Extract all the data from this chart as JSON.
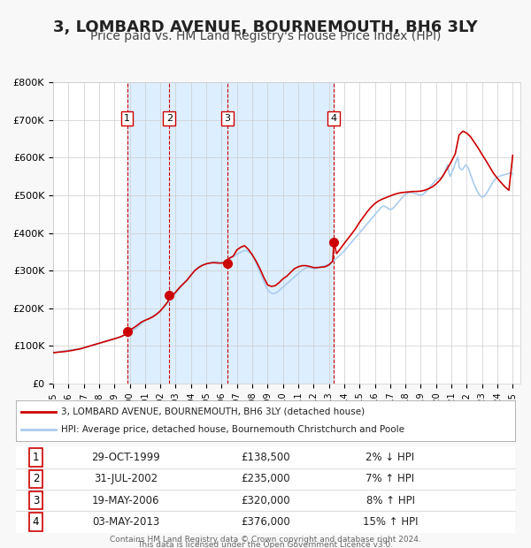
{
  "title": "3, LOMBARD AVENUE, BOURNEMOUTH, BH6 3LY",
  "subtitle": "Price paid vs. HM Land Registry's House Price Index (HPI)",
  "title_fontsize": 13,
  "subtitle_fontsize": 10,
  "ylim": [
    0,
    800000
  ],
  "yticks": [
    0,
    100000,
    200000,
    300000,
    400000,
    500000,
    600000,
    700000,
    800000
  ],
  "ytick_labels": [
    "£0",
    "£100K",
    "£200K",
    "£300K",
    "£400K",
    "£500K",
    "£600K",
    "£700K",
    "£800K"
  ],
  "xlim_start": 1995.0,
  "xlim_end": 2025.5,
  "xtick_years": [
    1995,
    1996,
    1997,
    1998,
    1999,
    2000,
    2001,
    2002,
    2003,
    2004,
    2005,
    2006,
    2007,
    2008,
    2009,
    2010,
    2011,
    2012,
    2013,
    2014,
    2015,
    2016,
    2017,
    2018,
    2019,
    2020,
    2021,
    2022,
    2023,
    2024,
    2025
  ],
  "background_color": "#f8f8f8",
  "plot_bg_color": "#ffffff",
  "grid_color": "#cccccc",
  "shaded_region_color": "#ddeeff",
  "red_line_color": "#cc0000",
  "blue_line_color": "#aaccee",
  "sale_marker_color": "#cc0000",
  "vline_color_red": "#cc0000",
  "transactions": [
    {
      "num": 1,
      "date_dec": 1999.83,
      "price": 138500,
      "label": "29-OCT-1999",
      "price_str": "£138,500",
      "change": "2% ↓ HPI"
    },
    {
      "num": 2,
      "date_dec": 2002.58,
      "price": 235000,
      "label": "31-JUL-2002",
      "price_str": "£235,000",
      "change": "7% ↑ HPI"
    },
    {
      "num": 3,
      "date_dec": 2006.38,
      "price": 320000,
      "label": "19-MAY-2006",
      "price_str": "£320,000",
      "change": "8% ↑ HPI"
    },
    {
      "num": 4,
      "date_dec": 2013.33,
      "price": 376000,
      "label": "03-MAY-2013",
      "price_str": "£376,000",
      "change": "15% ↑ HPI"
    }
  ],
  "legend_line1": "3, LOMBARD AVENUE, BOURNEMOUTH, BH6 3LY (detached house)",
  "legend_line2": "HPI: Average price, detached house, Bournemouth Christchurch and Poole",
  "footer1": "Contains HM Land Registry data © Crown copyright and database right 2024.",
  "footer2": "This data is licensed under the Open Government Licence v3.0.",
  "hpi_data": {
    "years": [
      1995.0,
      1995.083,
      1995.167,
      1995.25,
      1995.333,
      1995.417,
      1995.5,
      1995.583,
      1995.667,
      1995.75,
      1995.833,
      1995.917,
      1996.0,
      1996.083,
      1996.167,
      1996.25,
      1996.333,
      1996.417,
      1996.5,
      1996.583,
      1996.667,
      1996.75,
      1996.833,
      1996.917,
      1997.0,
      1997.083,
      1997.167,
      1997.25,
      1997.333,
      1997.417,
      1997.5,
      1997.583,
      1997.667,
      1997.75,
      1997.833,
      1997.917,
      1998.0,
      1998.083,
      1998.167,
      1998.25,
      1998.333,
      1998.417,
      1998.5,
      1998.583,
      1998.667,
      1998.75,
      1998.833,
      1998.917,
      1999.0,
      1999.083,
      1999.167,
      1999.25,
      1999.333,
      1999.417,
      1999.5,
      1999.583,
      1999.667,
      1999.75,
      1999.833,
      1999.917,
      2000.0,
      2000.083,
      2000.167,
      2000.25,
      2000.333,
      2000.417,
      2000.5,
      2000.583,
      2000.667,
      2000.75,
      2000.833,
      2000.917,
      2001.0,
      2001.083,
      2001.167,
      2001.25,
      2001.333,
      2001.417,
      2001.5,
      2001.583,
      2001.667,
      2001.75,
      2001.833,
      2001.917,
      2002.0,
      2002.083,
      2002.167,
      2002.25,
      2002.333,
      2002.417,
      2002.5,
      2002.583,
      2002.667,
      2002.75,
      2002.833,
      2002.917,
      2003.0,
      2003.083,
      2003.167,
      2003.25,
      2003.333,
      2003.417,
      2003.5,
      2003.583,
      2003.667,
      2003.75,
      2003.833,
      2003.917,
      2004.0,
      2004.083,
      2004.167,
      2004.25,
      2004.333,
      2004.417,
      2004.5,
      2004.583,
      2004.667,
      2004.75,
      2004.833,
      2004.917,
      2005.0,
      2005.083,
      2005.167,
      2005.25,
      2005.333,
      2005.417,
      2005.5,
      2005.583,
      2005.667,
      2005.75,
      2005.833,
      2005.917,
      2006.0,
      2006.083,
      2006.167,
      2006.25,
      2006.333,
      2006.417,
      2006.5,
      2006.583,
      2006.667,
      2006.75,
      2006.833,
      2006.917,
      2007.0,
      2007.083,
      2007.167,
      2007.25,
      2007.333,
      2007.417,
      2007.5,
      2007.583,
      2007.667,
      2007.75,
      2007.833,
      2007.917,
      2008.0,
      2008.083,
      2008.167,
      2008.25,
      2008.333,
      2008.417,
      2008.5,
      2008.583,
      2008.667,
      2008.75,
      2008.833,
      2008.917,
      2009.0,
      2009.083,
      2009.167,
      2009.25,
      2009.333,
      2009.417,
      2009.5,
      2009.583,
      2009.667,
      2009.75,
      2009.833,
      2009.917,
      2010.0,
      2010.083,
      2010.167,
      2010.25,
      2010.333,
      2010.417,
      2010.5,
      2010.583,
      2010.667,
      2010.75,
      2010.833,
      2010.917,
      2011.0,
      2011.083,
      2011.167,
      2011.25,
      2011.333,
      2011.417,
      2011.5,
      2011.583,
      2011.667,
      2011.75,
      2011.833,
      2011.917,
      2012.0,
      2012.083,
      2012.167,
      2012.25,
      2012.333,
      2012.417,
      2012.5,
      2012.583,
      2012.667,
      2012.75,
      2012.833,
      2012.917,
      2013.0,
      2013.083,
      2013.167,
      2013.25,
      2013.333,
      2013.417,
      2013.5,
      2013.583,
      2013.667,
      2013.75,
      2013.833,
      2013.917,
      2014.0,
      2014.083,
      2014.167,
      2014.25,
      2014.333,
      2014.417,
      2014.5,
      2014.583,
      2014.667,
      2014.75,
      2014.833,
      2014.917,
      2015.0,
      2015.083,
      2015.167,
      2015.25,
      2015.333,
      2015.417,
      2015.5,
      2015.583,
      2015.667,
      2015.75,
      2015.833,
      2015.917,
      2016.0,
      2016.083,
      2016.167,
      2016.25,
      2016.333,
      2016.417,
      2016.5,
      2016.583,
      2016.667,
      2016.75,
      2016.833,
      2016.917,
      2017.0,
      2017.083,
      2017.167,
      2017.25,
      2017.333,
      2017.417,
      2017.5,
      2017.583,
      2017.667,
      2017.75,
      2017.833,
      2017.917,
      2018.0,
      2018.083,
      2018.167,
      2018.25,
      2018.333,
      2018.417,
      2018.5,
      2018.583,
      2018.667,
      2018.75,
      2018.833,
      2018.917,
      2019.0,
      2019.083,
      2019.167,
      2019.25,
      2019.333,
      2019.417,
      2019.5,
      2019.583,
      2019.667,
      2019.75,
      2019.833,
      2019.917,
      2020.0,
      2020.083,
      2020.167,
      2020.25,
      2020.333,
      2020.417,
      2020.5,
      2020.583,
      2020.667,
      2020.75,
      2020.833,
      2020.917,
      2021.0,
      2021.083,
      2021.167,
      2021.25,
      2021.333,
      2021.417,
      2021.5,
      2021.583,
      2021.667,
      2021.75,
      2021.833,
      2021.917,
      2022.0,
      2022.083,
      2022.167,
      2022.25,
      2022.333,
      2022.417,
      2022.5,
      2022.583,
      2022.667,
      2022.75,
      2022.833,
      2022.917,
      2023.0,
      2023.083,
      2023.167,
      2023.25,
      2023.333,
      2023.417,
      2023.5,
      2023.583,
      2023.667,
      2023.75,
      2023.833,
      2023.917,
      2024.0,
      2024.083,
      2024.167,
      2024.25,
      2024.333,
      2024.417,
      2024.5,
      2024.583,
      2024.667,
      2024.75,
      2024.833,
      2024.917,
      2025.0
    ],
    "values": [
      82000,
      83000,
      83500,
      84000,
      84500,
      85000,
      85500,
      86000,
      86500,
      87000,
      87500,
      88000,
      88500,
      89000,
      89500,
      90000,
      90500,
      91000,
      91500,
      92000,
      92500,
      93000,
      93500,
      94000,
      95000,
      96000,
      97000,
      98000,
      99000,
      100000,
      101000,
      102000,
      103000,
      104000,
      105000,
      106000,
      107000,
      108000,
      109000,
      110000,
      111000,
      112000,
      113000,
      114000,
      115000,
      116000,
      117000,
      118000,
      119000,
      120000,
      121000,
      122000,
      123000,
      124000,
      125000,
      127000,
      129000,
      131000,
      133000,
      135000,
      137000,
      139000,
      141000,
      143000,
      145000,
      147000,
      150000,
      153000,
      156000,
      159000,
      162000,
      165000,
      167000,
      169000,
      171000,
      173000,
      175000,
      177000,
      179000,
      181000,
      183000,
      185000,
      187000,
      189000,
      192000,
      196000,
      200000,
      204000,
      208000,
      212000,
      216000,
      220000,
      224000,
      228000,
      232000,
      236000,
      240000,
      244000,
      248000,
      252000,
      256000,
      260000,
      264000,
      268000,
      272000,
      276000,
      280000,
      284000,
      288000,
      292000,
      296000,
      300000,
      304000,
      307000,
      310000,
      312000,
      314000,
      315000,
      316000,
      317000,
      318000,
      319000,
      320000,
      321000,
      322000,
      323000,
      323000,
      323000,
      323000,
      323000,
      322000,
      321000,
      320000,
      321000,
      323000,
      325000,
      327000,
      329000,
      331000,
      333000,
      335000,
      337000,
      339000,
      341000,
      343000,
      345000,
      347000,
      349000,
      350000,
      352000,
      353000,
      353000,
      352000,
      350000,
      348000,
      345000,
      340000,
      334000,
      328000,
      320000,
      312000,
      304000,
      296000,
      288000,
      280000,
      272000,
      264000,
      256000,
      250000,
      245000,
      242000,
      240000,
      239000,
      239000,
      240000,
      242000,
      244000,
      247000,
      250000,
      253000,
      256000,
      259000,
      262000,
      265000,
      268000,
      271000,
      274000,
      277000,
      280000,
      283000,
      286000,
      289000,
      292000,
      295000,
      298000,
      301000,
      303000,
      305000,
      307000,
      308000,
      308000,
      308000,
      307000,
      306000,
      305000,
      305000,
      306000,
      307000,
      308000,
      309000,
      310000,
      311000,
      312000,
      313000,
      314000,
      315000,
      316000,
      318000,
      321000,
      324000,
      327000,
      330000,
      333000,
      336000,
      339000,
      342000,
      345000,
      348000,
      352000,
      356000,
      360000,
      364000,
      368000,
      372000,
      376000,
      380000,
      384000,
      388000,
      392000,
      396000,
      400000,
      404000,
      408000,
      412000,
      416000,
      420000,
      424000,
      428000,
      432000,
      436000,
      440000,
      444000,
      448000,
      452000,
      456000,
      460000,
      464000,
      468000,
      470000,
      471000,
      470000,
      468000,
      466000,
      464000,
      462000,
      463000,
      465000,
      468000,
      472000,
      476000,
      480000,
      484000,
      488000,
      492000,
      496000,
      500000,
      502000,
      504000,
      506000,
      507000,
      507000,
      507000,
      506000,
      505000,
      504000,
      503000,
      502000,
      501000,
      500000,
      501000,
      503000,
      506000,
      509000,
      513000,
      517000,
      521000,
      525000,
      529000,
      533000,
      537000,
      540000,
      543000,
      545000,
      546000,
      546000,
      548000,
      555000,
      563000,
      572000,
      581000,
      560000,
      550000,
      558000,
      566000,
      575000,
      584000,
      593000,
      602000,
      576000,
      570000,
      568000,
      570000,
      575000,
      580000,
      578000,
      573000,
      565000,
      555000,
      545000,
      536000,
      527000,
      519000,
      512000,
      506000,
      501000,
      497000,
      495000,
      496000,
      499000,
      503000,
      508000,
      514000,
      520000,
      526000,
      532000,
      537000,
      541000,
      545000,
      548000,
      550000,
      551000,
      552000,
      553000,
      554000,
      555000,
      556000,
      557000,
      558000,
      559000,
      560000,
      555000
    ]
  },
  "price_data": {
    "years": [
      1995.0,
      1995.25,
      1995.5,
      1995.75,
      1996.0,
      1996.25,
      1996.5,
      1996.75,
      1997.0,
      1997.25,
      1997.5,
      1997.75,
      1998.0,
      1998.25,
      1998.5,
      1998.75,
      1999.0,
      1999.25,
      1999.5,
      1999.75,
      1999.83,
      2000.0,
      2000.25,
      2000.5,
      2000.75,
      2001.0,
      2001.25,
      2001.5,
      2001.75,
      2002.0,
      2002.25,
      2002.5,
      2002.58,
      2002.75,
      2003.0,
      2003.25,
      2003.5,
      2003.75,
      2004.0,
      2004.25,
      2004.5,
      2004.75,
      2005.0,
      2005.25,
      2005.5,
      2005.75,
      2006.0,
      2006.25,
      2006.38,
      2006.5,
      2006.75,
      2007.0,
      2007.25,
      2007.5,
      2007.75,
      2008.0,
      2008.25,
      2008.5,
      2008.75,
      2009.0,
      2009.25,
      2009.5,
      2009.75,
      2010.0,
      2010.25,
      2010.5,
      2010.75,
      2011.0,
      2011.25,
      2011.5,
      2011.75,
      2012.0,
      2012.25,
      2012.5,
      2012.75,
      2013.0,
      2013.25,
      2013.33,
      2013.5,
      2013.75,
      2014.0,
      2014.25,
      2014.5,
      2014.75,
      2015.0,
      2015.25,
      2015.5,
      2015.75,
      2016.0,
      2016.25,
      2016.5,
      2016.75,
      2017.0,
      2017.25,
      2017.5,
      2017.75,
      2018.0,
      2018.25,
      2018.5,
      2018.75,
      2019.0,
      2019.25,
      2019.5,
      2019.75,
      2020.0,
      2020.25,
      2020.5,
      2020.75,
      2021.0,
      2021.25,
      2021.5,
      2021.75,
      2022.0,
      2022.25,
      2022.5,
      2022.75,
      2023.0,
      2023.25,
      2023.5,
      2023.75,
      2024.0,
      2024.25,
      2024.5,
      2024.75,
      2025.0
    ],
    "values": [
      82000,
      83000,
      84000,
      85000,
      86500,
      88000,
      90000,
      92000,
      95000,
      98000,
      101000,
      104000,
      107000,
      110000,
      113000,
      116000,
      119000,
      122000,
      126000,
      131000,
      138500,
      142000,
      148000,
      155000,
      163000,
      168000,
      172000,
      177000,
      184000,
      193000,
      205000,
      218000,
      235000,
      232000,
      243000,
      255000,
      265000,
      275000,
      288000,
      300000,
      308000,
      314000,
      318000,
      320000,
      321000,
      320000,
      320000,
      322000,
      320000,
      333000,
      338000,
      355000,
      362000,
      366000,
      356000,
      342000,
      325000,
      305000,
      282000,
      262000,
      258000,
      260000,
      268000,
      278000,
      285000,
      295000,
      305000,
      310000,
      313000,
      313000,
      311000,
      308000,
      308000,
      309000,
      310000,
      315000,
      325000,
      376000,
      345000,
      358000,
      372000,
      385000,
      398000,
      412000,
      428000,
      442000,
      456000,
      468000,
      478000,
      485000,
      490000,
      494000,
      498000,
      502000,
      505000,
      507000,
      508000,
      509000,
      510000,
      510000,
      511000,
      513000,
      517000,
      522000,
      530000,
      540000,
      555000,
      572000,
      590000,
      610000,
      660000,
      670000,
      665000,
      655000,
      640000,
      625000,
      608000,
      592000,
      575000,
      558000,
      545000,
      533000,
      522000,
      513000,
      606000
    ]
  }
}
